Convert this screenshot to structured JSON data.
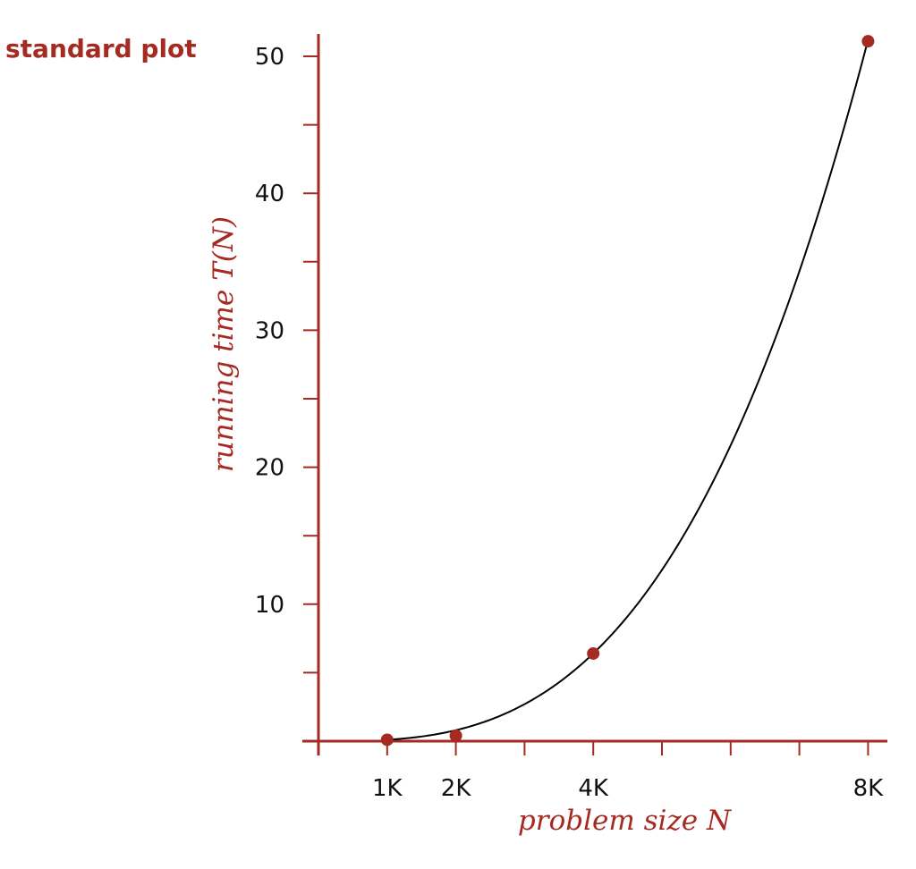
{
  "chart_data": {
    "type": "line",
    "title": "standard plot",
    "xlabel": "problem size N",
    "ylabel": "running time T(N)",
    "x_tick_labels": [
      {
        "value": 1,
        "label": "1K"
      },
      {
        "value": 2,
        "label": "2K"
      },
      {
        "value": 4,
        "label": "4K"
      },
      {
        "value": 8,
        "label": "8K"
      }
    ],
    "x_minor_ticks": [
      3,
      5,
      6,
      7
    ],
    "y_ticks": [
      {
        "value": 10,
        "label": "10"
      },
      {
        "value": 20,
        "label": "20"
      },
      {
        "value": 30,
        "label": "30"
      },
      {
        "value": 40,
        "label": "40"
      },
      {
        "value": 50,
        "label": "50"
      }
    ],
    "y_minor_ticks": [
      5,
      15,
      25,
      35,
      45
    ],
    "xlim": [
      0,
      8.3
    ],
    "ylim": [
      0,
      51.5
    ],
    "grid": false,
    "points": [
      {
        "x": 1,
        "y": 0.1
      },
      {
        "x": 2,
        "y": 0.4
      },
      {
        "x": 4,
        "y": 6.4
      },
      {
        "x": 8,
        "y": 51.1
      }
    ],
    "fit_curve": {
      "model": "power",
      "coefficient": 0.1,
      "exponent": 3
    },
    "colors": {
      "axis": "#a52a22",
      "points": "#a52a22",
      "curve": "#000000",
      "title": "#a52a22",
      "tick_labels": "#111111"
    }
  }
}
